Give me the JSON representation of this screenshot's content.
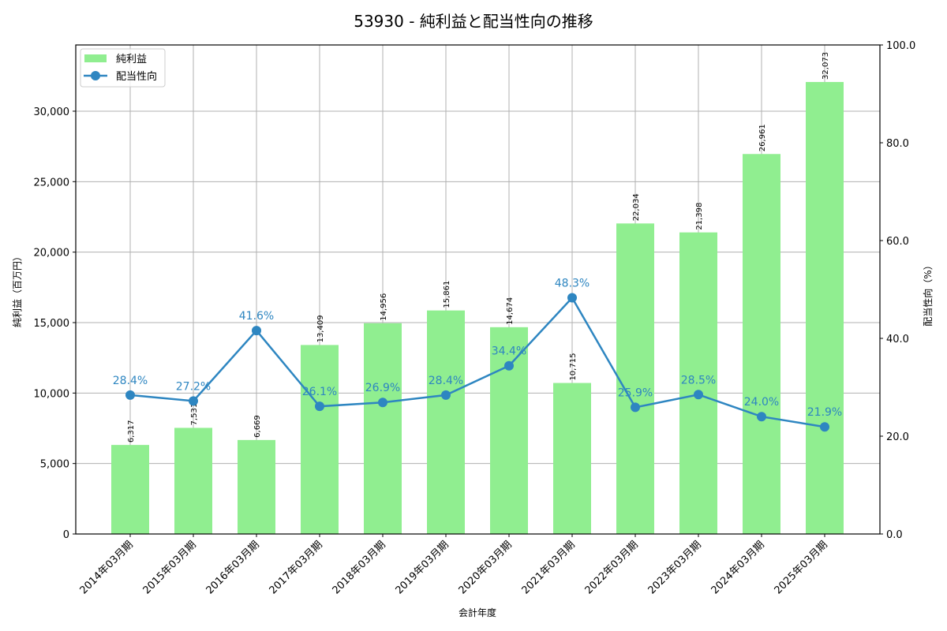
{
  "chart_data": {
    "type": "bar+line",
    "title": "53930 - 純利益と配当性向の推移",
    "xlabel": "会計年度",
    "ylabel": "純利益（百万円）",
    "y2label": "配当性向（%）",
    "categories": [
      "2014年03月期",
      "2015年03月期",
      "2016年03月期",
      "2017年03月期",
      "2018年03月期",
      "2019年03月期",
      "2020年03月期",
      "2021年03月期",
      "2022年03月期",
      "2023年03月期",
      "2024年03月期",
      "2025年03月期"
    ],
    "series": [
      {
        "name": "純利益",
        "type": "bar",
        "axis": "left",
        "color": "#90ee90",
        "values": [
          6317,
          7531,
          6669,
          13409,
          14956,
          15861,
          14674,
          10715,
          22034,
          21398,
          26961,
          32073
        ],
        "labels": [
          "6,317",
          "7,531",
          "6,669",
          "13,409",
          "14,956",
          "15,861",
          "14,674",
          "10,715",
          "22,034",
          "21,398",
          "26,961",
          "32,073"
        ]
      },
      {
        "name": "配当性向",
        "type": "line",
        "axis": "right",
        "color": "#2e86c1",
        "values": [
          28.4,
          27.2,
          41.6,
          26.1,
          26.9,
          28.4,
          34.4,
          48.3,
          25.9,
          28.5,
          24.0,
          21.9
        ],
        "labels": [
          "28.4%",
          "27.2%",
          "41.6%",
          "26.1%",
          "26.9%",
          "28.4%",
          "34.4%",
          "48.3%",
          "25.9%",
          "28.5%",
          "24.0%",
          "21.9%"
        ]
      }
    ],
    "ylim": [
      0,
      34700
    ],
    "y2lim": [
      0,
      100
    ],
    "yticks": [
      0,
      5000,
      10000,
      15000,
      20000,
      25000,
      30000
    ],
    "ytick_labels": [
      "0",
      "5,000",
      "10,000",
      "15,000",
      "20,000",
      "25,000",
      "30,000"
    ],
    "y2ticks": [
      0,
      20,
      40,
      60,
      80,
      100
    ],
    "y2tick_labels": [
      "0.0",
      "20.0",
      "40.0",
      "60.0",
      "80.0",
      "100.0"
    ],
    "grid": true,
    "legend_position": "upper left"
  },
  "legend": [
    {
      "label": "純利益"
    },
    {
      "label": "配当性向"
    }
  ]
}
